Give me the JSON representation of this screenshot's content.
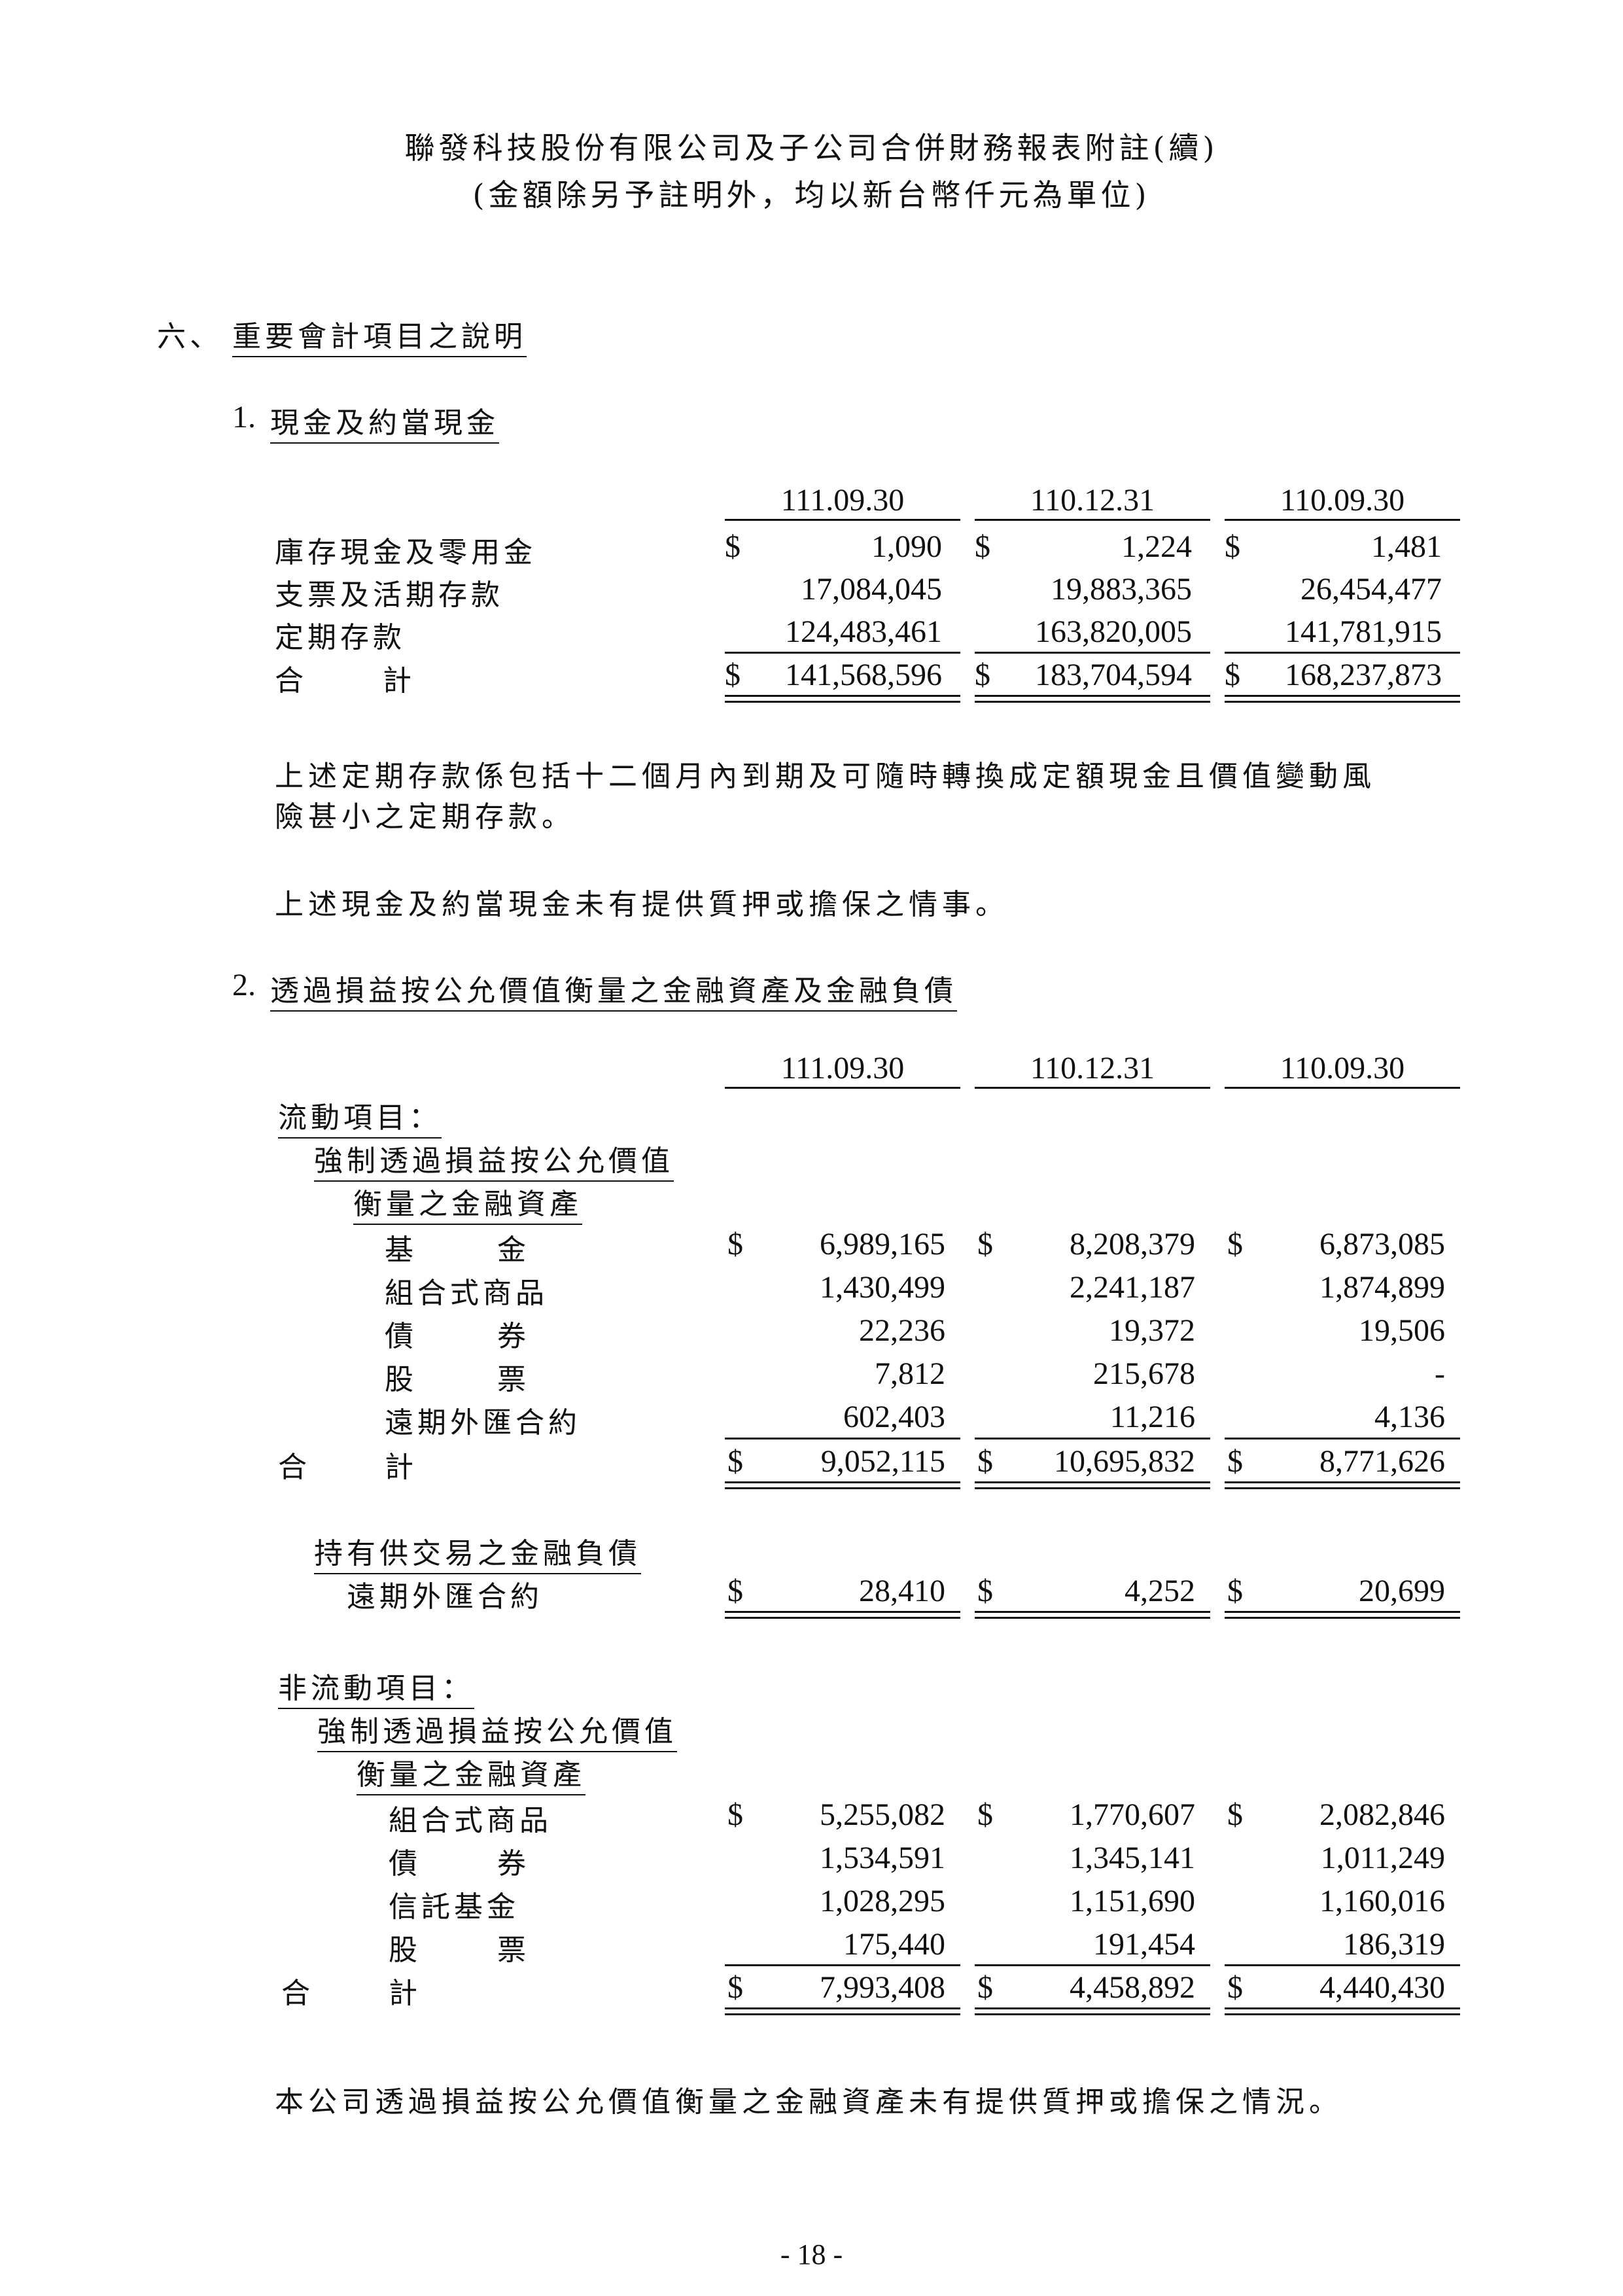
{
  "header": {
    "title": "聯發科技股份有限公司及子公司合併財務報表附註(續)",
    "subtitle": "(金額除另予註明外，均以新台幣仟元為單位)"
  },
  "section": {
    "number": "六、",
    "title": "重要會計項目之說明"
  },
  "cash": {
    "heading_no": "1.",
    "heading": "現金及約當現金",
    "columns": [
      "111.09.30",
      "110.12.31",
      "110.09.30"
    ],
    "rows": [
      {
        "label": "庫存現金及零用金",
        "values": [
          "1,090",
          "1,224",
          "1,481"
        ]
      },
      {
        "label": "支票及活期存款",
        "values": [
          "17,084,045",
          "19,883,365",
          "26,454,477"
        ]
      },
      {
        "label": "定期存款",
        "values": [
          "124,483,461",
          "163,820,005",
          "141,781,915"
        ]
      }
    ],
    "total": {
      "label_a": "合",
      "label_b": "計",
      "values": [
        "141,568,596",
        "183,704,594",
        "168,237,873"
      ]
    },
    "notes": [
      "上述定期存款係包括十二個月內到期及可隨時轉換成定額現金且價值變動風",
      "險甚小之定期存款。",
      "上述現金及約當現金未有提供質押或擔保之情事。"
    ]
  },
  "fvtpl": {
    "heading_no": "2.",
    "heading": "透過損益按公允價值衡量之金融資產及金融負債",
    "columns": [
      "111.09.30",
      "110.12.31",
      "110.09.30"
    ],
    "current_label": "流動項目：",
    "mandatory_label_1": "強制透過損益按公允價值",
    "mandatory_label_2": "衡量之金融資產",
    "current_rows": [
      {
        "label_a": "基",
        "label_b": "金",
        "values": [
          "6,989,165",
          "8,208,379",
          "6,873,085"
        ]
      },
      {
        "label": "組合式商品",
        "values": [
          "1,430,499",
          "2,241,187",
          "1,874,899"
        ]
      },
      {
        "label_a": "債",
        "label_b": "券",
        "values": [
          "22,236",
          "19,372",
          "19,506"
        ]
      },
      {
        "label_a": "股",
        "label_b": "票",
        "values": [
          "7,812",
          "215,678",
          "-"
        ]
      },
      {
        "label": "遠期外匯合約",
        "values": [
          "602,403",
          "11,216",
          "4,136"
        ]
      }
    ],
    "current_total": {
      "label_a": "合",
      "label_b": "計",
      "values": [
        "9,052,115",
        "10,695,832",
        "8,771,626"
      ]
    },
    "liability_label": "持有供交易之金融負債",
    "liability_row": {
      "label": "遠期外匯合約",
      "values": [
        "28,410",
        "4,252",
        "20,699"
      ]
    },
    "noncurrent_label": "非流動項目：",
    "noncurrent_rows": [
      {
        "label": "組合式商品",
        "values": [
          "5,255,082",
          "1,770,607",
          "2,082,846"
        ]
      },
      {
        "label_a": "債",
        "label_b": "券",
        "values": [
          "1,534,591",
          "1,345,141",
          "1,011,249"
        ]
      },
      {
        "label": "信託基金",
        "values": [
          "1,028,295",
          "1,151,690",
          "1,160,016"
        ]
      },
      {
        "label_a": "股",
        "label_b": "票",
        "values": [
          "175,440",
          "191,454",
          "186,319"
        ]
      }
    ],
    "noncurrent_total": {
      "label_a": "合",
      "label_b": "計",
      "values": [
        "7,993,408",
        "4,458,892",
        "4,440,430"
      ]
    },
    "note": "本公司透過損益按公允價值衡量之金融資產未有提供質押或擔保之情況。"
  },
  "currency_symbol": "$",
  "footer": {
    "page_number": "- 18 -"
  }
}
